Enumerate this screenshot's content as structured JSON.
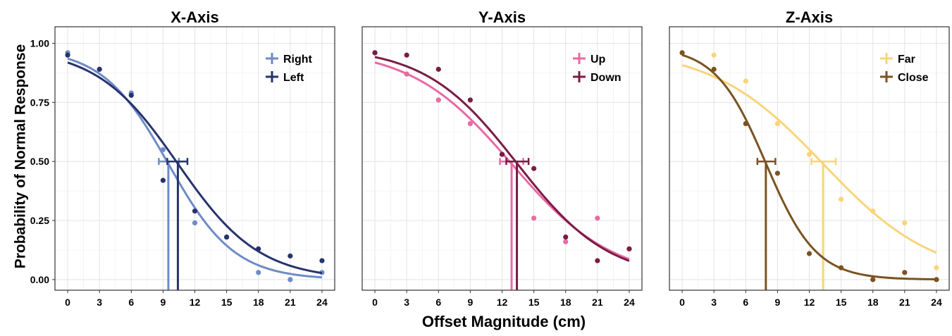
{
  "figure": {
    "ylabel": "Probability of Normal Response",
    "xlabel": "Offset Magnitude (cm)"
  },
  "chart_data": [
    {
      "type": "scatter",
      "title": "X-Axis",
      "xlabel": "Offset Magnitude (cm)",
      "ylabel": "Probability of Normal Response",
      "x_ticks": [
        0,
        3,
        6,
        9,
        12,
        15,
        18,
        21,
        24
      ],
      "y_ticks": [
        "0.00",
        "0.25",
        "0.50",
        "0.75",
        "1.00"
      ],
      "xlim": [
        -1.2,
        25.2
      ],
      "ylim": [
        -0.045,
        1.07
      ],
      "legend_position": "top-right",
      "grid": true,
      "series": [
        {
          "name": "Right",
          "color": "#6f8bc6",
          "points": [
            [
              0,
              0.96
            ],
            [
              3,
              0.89
            ],
            [
              6,
              0.79
            ],
            [
              9,
              0.55
            ],
            [
              12,
              0.24
            ],
            [
              15,
              0.18
            ],
            [
              18,
              0.03
            ],
            [
              21,
              0.0
            ],
            [
              24,
              0.03
            ]
          ],
          "curve": {
            "x50": 9.5,
            "slope": 0.32,
            "upper": 0.98,
            "lower": 0.0
          },
          "threshold": {
            "x": 9.5,
            "ci": [
              8.6,
              10.5
            ]
          }
        },
        {
          "name": "Left",
          "color": "#27336e",
          "points": [
            [
              0,
              0.95
            ],
            [
              3,
              0.89
            ],
            [
              6,
              0.78
            ],
            [
              9,
              0.42
            ],
            [
              12,
              0.29
            ],
            [
              15,
              0.18
            ],
            [
              18,
              0.13
            ],
            [
              21,
              0.1
            ],
            [
              24,
              0.08
            ]
          ],
          "curve": {
            "x50": 10.4,
            "slope": 0.26,
            "upper": 0.98,
            "lower": 0.0
          },
          "threshold": {
            "x": 10.4,
            "ci": [
              9.4,
              11.3
            ]
          }
        }
      ]
    },
    {
      "type": "scatter",
      "title": "Y-Axis",
      "xlabel": "Offset Magnitude (cm)",
      "ylabel": "",
      "x_ticks": [
        0,
        3,
        6,
        9,
        12,
        15,
        18,
        21,
        24
      ],
      "y_ticks": [],
      "xlim": [
        -1.2,
        25.2
      ],
      "ylim": [
        -0.045,
        1.07
      ],
      "legend_position": "top-right",
      "grid": true,
      "series": [
        {
          "name": "Up",
          "color": "#e86aa6",
          "points": [
            [
              0,
              0.96
            ],
            [
              3,
              0.87
            ],
            [
              6,
              0.76
            ],
            [
              9,
              0.66
            ],
            [
              12,
              0.53
            ],
            [
              15,
              0.26
            ],
            [
              18,
              0.16
            ],
            [
              21,
              0.26
            ],
            [
              24,
              0.13
            ]
          ],
          "curve": {
            "x50": 12.9,
            "slope": 0.21,
            "upper": 0.98,
            "lower": 0.0
          },
          "threshold": {
            "x": 12.9,
            "ci": [
              11.8,
              14.0
            ]
          }
        },
        {
          "name": "Down",
          "color": "#7a1c44",
          "points": [
            [
              0,
              0.96
            ],
            [
              3,
              0.95
            ],
            [
              6,
              0.89
            ],
            [
              9,
              0.76
            ],
            [
              12,
              0.53
            ],
            [
              15,
              0.47
            ],
            [
              18,
              0.18
            ],
            [
              21,
              0.08
            ],
            [
              24,
              0.13
            ]
          ],
          "curve": {
            "x50": 13.4,
            "slope": 0.23,
            "upper": 0.985,
            "lower": 0.0
          },
          "threshold": {
            "x": 13.4,
            "ci": [
              12.4,
              14.5
            ]
          }
        }
      ]
    },
    {
      "type": "scatter",
      "title": "Z-Axis",
      "xlabel": "Offset Magnitude (cm)",
      "ylabel": "",
      "x_ticks": [
        0,
        3,
        6,
        9,
        12,
        15,
        18,
        21,
        24
      ],
      "y_ticks": [],
      "xlim": [
        -1.2,
        25.2
      ],
      "ylim": [
        -0.045,
        1.07
      ],
      "legend_position": "top-right",
      "grid": true,
      "series": [
        {
          "name": "Far",
          "color": "#f8d57a",
          "points": [
            [
              0,
              0.96
            ],
            [
              3,
              0.95
            ],
            [
              6,
              0.84
            ],
            [
              9,
              0.66
            ],
            [
              12,
              0.53
            ],
            [
              15,
              0.34
            ],
            [
              18,
              0.29
            ],
            [
              21,
              0.24
            ],
            [
              24,
              0.05
            ]
          ],
          "curve": {
            "x50": 13.3,
            "slope": 0.19,
            "upper": 0.98,
            "lower": 0.0
          },
          "threshold": {
            "x": 13.3,
            "ci": [
              12.2,
              14.5
            ]
          }
        },
        {
          "name": "Close",
          "color": "#7a5321",
          "points": [
            [
              0,
              0.96
            ],
            [
              3,
              0.89
            ],
            [
              6,
              0.66
            ],
            [
              9,
              0.45
            ],
            [
              12,
              0.11
            ],
            [
              15,
              0.05
            ],
            [
              18,
              0.0
            ],
            [
              21,
              0.03
            ],
            [
              24,
              0.0
            ]
          ],
          "curve": {
            "x50": 7.9,
            "slope": 0.42,
            "upper": 0.985,
            "lower": 0.0
          },
          "threshold": {
            "x": 7.9,
            "ci": [
              7.1,
              8.8
            ]
          }
        }
      ]
    }
  ]
}
